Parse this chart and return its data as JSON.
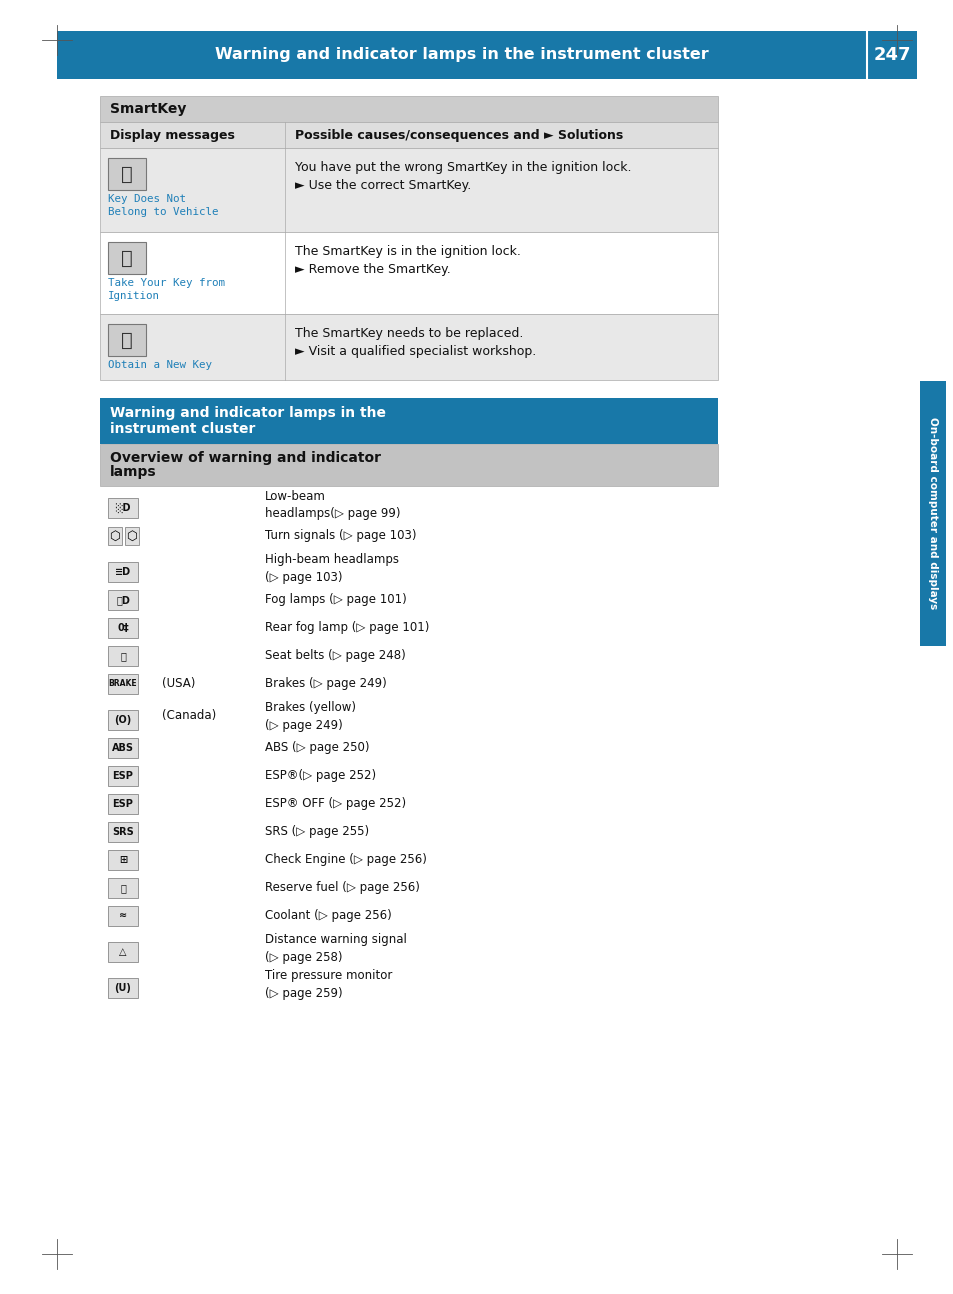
{
  "header_title": "Warning and indicator lamps in the instrument cluster",
  "header_page": "247",
  "header_bg": "#1878a8",
  "side_label": "On-board computer and displays",
  "table1_header": "SmartKey",
  "table1_col1_header": "Display messages",
  "table1_col2_header": "Possible causes/consequences and ► Solutions",
  "table1_rows": [
    {
      "icon_label_1": "Key Does Not",
      "icon_label_2": "Belong to Vehicle",
      "text_line1": "You have put the wrong SmartKey in the ignition lock.",
      "text_line2": "► Use the correct SmartKey."
    },
    {
      "icon_label_1": "Take Your Key from",
      "icon_label_2": "Ignition",
      "text_line1": "The SmartKey is in the ignition lock.",
      "text_line2": "► Remove the SmartKey."
    },
    {
      "icon_label_1": "Obtain a New Key",
      "icon_label_2": "",
      "text_line1": "The SmartKey needs to be replaced.",
      "text_line2": "► Visit a qualified specialist workshop."
    }
  ],
  "table2_header_line1": "Warning and indicator lamps in the",
  "table2_header_line2": "instrument cluster",
  "table2_subheader_line1": "Overview of warning and indicator",
  "table2_subheader_line2": "lamps",
  "table2_items": [
    {
      "icon_key": "low_beam",
      "prefix": "",
      "desc_line1": "Low-beam",
      "desc_line2": "headlamps(▷ page 99)"
    },
    {
      "icon_key": "turn",
      "prefix": "",
      "desc_line1": "Turn signals (▷ page 103)",
      "desc_line2": ""
    },
    {
      "icon_key": "high_beam",
      "prefix": "",
      "desc_line1": "High-beam headlamps",
      "desc_line2": "(▷ page 103)"
    },
    {
      "icon_key": "fog",
      "prefix": "",
      "desc_line1": "Fog lamps (▷ page 101)",
      "desc_line2": ""
    },
    {
      "icon_key": "rear_fog",
      "prefix": "",
      "desc_line1": "Rear fog lamp (▷ page 101)",
      "desc_line2": ""
    },
    {
      "icon_key": "seatbelt",
      "prefix": "",
      "desc_line1": "Seat belts (▷ page 248)",
      "desc_line2": ""
    },
    {
      "icon_key": "brake_usa",
      "prefix": "(USA)",
      "desc_line1": "Brakes (▷ page 249)",
      "desc_line2": ""
    },
    {
      "icon_key": "brake_can",
      "prefix": "(Canada)",
      "desc_line1": "Brakes (yellow)",
      "desc_line2": "(▷ page 249)"
    },
    {
      "icon_key": "abs",
      "prefix": "",
      "desc_line1": "ABS (▷ page 250)",
      "desc_line2": ""
    },
    {
      "icon_key": "esp",
      "prefix": "",
      "desc_line1": "ESP®(▷ page 252)",
      "desc_line2": ""
    },
    {
      "icon_key": "esp_off",
      "prefix": "",
      "desc_line1": "ESP® OFF (▷ page 252)",
      "desc_line2": ""
    },
    {
      "icon_key": "srs",
      "prefix": "",
      "desc_line1": "SRS (▷ page 255)",
      "desc_line2": ""
    },
    {
      "icon_key": "engine",
      "prefix": "",
      "desc_line1": "Check Engine (▷ page 256)",
      "desc_line2": ""
    },
    {
      "icon_key": "fuel",
      "prefix": "",
      "desc_line1": "Reserve fuel (▷ page 256)",
      "desc_line2": ""
    },
    {
      "icon_key": "coolant",
      "prefix": "",
      "desc_line1": "Coolant (▷ page 256)",
      "desc_line2": ""
    },
    {
      "icon_key": "dist_warn",
      "prefix": "",
      "desc_line1": "Distance warning signal",
      "desc_line2": "(▷ page 258)"
    },
    {
      "icon_key": "tire",
      "prefix": "",
      "desc_line1": "Tire pressure monitor",
      "desc_line2": "(▷ page 259)"
    }
  ],
  "header_bg_color": "#1878a8",
  "table_header_bg": "#c8c8c8",
  "table_subheader_bg": "#bbbbbb",
  "row_bg_odd": "#ebebeb",
  "row_bg_even": "#ffffff",
  "icon_blue": "#2080b8",
  "text_dark": "#111111",
  "border_color": "#aaaaaa"
}
